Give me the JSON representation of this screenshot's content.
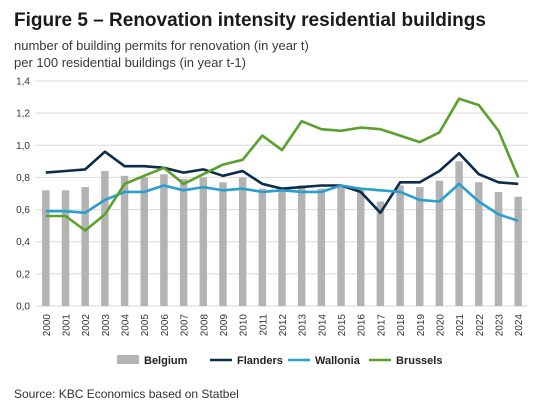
{
  "header": {
    "title": "Figure 5 – Renovation intensity residential buildings",
    "subtitle_line1": "number of building permits for renovation (in year t)",
    "subtitle_line2": "per 100 residential buildings (in year t-1)"
  },
  "footer": {
    "source": "Source: KBC Economics based on Statbel"
  },
  "chart_data": {
    "type": "bar",
    "title": "Figure 5 – Renovation intensity residential buildings",
    "ylim": [
      0,
      1.4
    ],
    "yticks": [
      "0,0",
      "0,2",
      "0,4",
      "0,6",
      "0,8",
      "1,0",
      "1,2",
      "1,4"
    ],
    "grid": true,
    "legend_position": "bottom",
    "categories": [
      "2000",
      "2001",
      "2002",
      "2003",
      "2004",
      "2005",
      "2006",
      "2007",
      "2008",
      "2009",
      "2010",
      "2011",
      "2012",
      "2013",
      "2014",
      "2015",
      "2016",
      "2017",
      "2018",
      "2019",
      "2020",
      "2021",
      "2022",
      "2023",
      "2024"
    ],
    "series": [
      {
        "name": "Belgium",
        "type": "bar",
        "color": "#b3b3b3",
        "values": [
          0.72,
          0.72,
          0.74,
          0.84,
          0.81,
          0.8,
          0.82,
          0.79,
          0.8,
          0.77,
          0.8,
          0.73,
          0.73,
          0.75,
          0.73,
          0.75,
          0.72,
          0.65,
          0.75,
          0.74,
          0.78,
          0.9,
          0.77,
          0.71,
          0.68
        ]
      },
      {
        "name": "Flanders",
        "type": "line",
        "color": "#0b2c4a",
        "values": [
          0.83,
          0.84,
          0.85,
          0.96,
          0.87,
          0.87,
          0.86,
          0.83,
          0.85,
          0.81,
          0.84,
          0.76,
          0.73,
          0.74,
          0.75,
          0.75,
          0.71,
          0.58,
          0.77,
          0.77,
          0.84,
          0.95,
          0.82,
          0.77,
          0.76
        ]
      },
      {
        "name": "Wallonia",
        "type": "line",
        "color": "#2a9fce",
        "values": [
          0.59,
          0.59,
          0.58,
          0.66,
          0.71,
          0.71,
          0.75,
          0.72,
          0.74,
          0.72,
          0.73,
          0.71,
          0.72,
          0.71,
          0.71,
          0.75,
          0.73,
          0.72,
          0.71,
          0.66,
          0.65,
          0.76,
          0.65,
          0.57,
          0.53
        ]
      },
      {
        "name": "Brussels",
        "type": "line",
        "color": "#5aa02c",
        "values": [
          0.56,
          0.56,
          0.47,
          0.57,
          0.76,
          0.81,
          0.86,
          0.76,
          0.82,
          0.88,
          0.91,
          1.06,
          0.97,
          1.15,
          1.1,
          1.09,
          1.11,
          1.1,
          1.06,
          1.02,
          1.08,
          1.29,
          1.25,
          1.09,
          0.8
        ]
      }
    ]
  }
}
